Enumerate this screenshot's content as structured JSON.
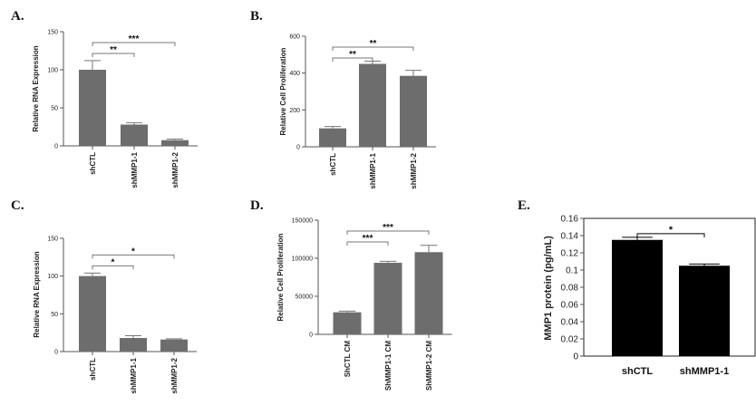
{
  "chart_data": [
    {
      "id": "A",
      "type": "bar",
      "panel_label": "A.",
      "ylabel": "Relative RNA Expression",
      "ylim": [
        0,
        150
      ],
      "yticks": [
        0,
        50,
        100,
        150
      ],
      "ytick_labels": [
        "0",
        "50",
        "100",
        "150"
      ],
      "categories": [
        "shCTL",
        "shMMP1-1",
        "shMMP1-2"
      ],
      "values": [
        100,
        28,
        7.5
      ],
      "errors": [
        12,
        2.5,
        1.5
      ],
      "bar_color": "#6d6d6d",
      "rotate_xlabels": true,
      "significance": [
        {
          "from": 0,
          "to": 1,
          "label": "**"
        },
        {
          "from": 0,
          "to": 2,
          "label": "***"
        }
      ]
    },
    {
      "id": "B",
      "type": "bar",
      "panel_label": "B.",
      "ylabel": "Relative Cell Proliferation",
      "ylim": [
        0,
        600
      ],
      "yticks": [
        0,
        200,
        400,
        600
      ],
      "ytick_labels": [
        "0",
        "200",
        "400",
        "600"
      ],
      "categories": [
        "shCTL",
        "shMMP1-1",
        "shMMP1-2"
      ],
      "values": [
        100,
        450,
        385
      ],
      "errors": [
        10,
        15,
        30
      ],
      "bar_color": "#6d6d6d",
      "rotate_xlabels": true,
      "significance": [
        {
          "from": 0,
          "to": 1,
          "label": "**"
        },
        {
          "from": 0,
          "to": 2,
          "label": "**"
        }
      ]
    },
    {
      "id": "C",
      "type": "bar",
      "panel_label": "C.",
      "ylabel": "Relative RNA Expression",
      "ylim": [
        0,
        150
      ],
      "yticks": [
        0,
        50,
        100,
        150
      ],
      "ytick_labels": [
        "0",
        "50",
        "100",
        "150"
      ],
      "categories": [
        "shCTL",
        "shMMP1-1",
        "shMMP1-2"
      ],
      "values": [
        100,
        18,
        16
      ],
      "errors": [
        4,
        3,
        1
      ],
      "bar_color": "#6d6d6d",
      "rotate_xlabels": true,
      "significance": [
        {
          "from": 0,
          "to": 1,
          "label": "*"
        },
        {
          "from": 0,
          "to": 2,
          "label": "*"
        }
      ]
    },
    {
      "id": "D",
      "type": "bar",
      "panel_label": "D.",
      "ylabel": "Relative Cell Proliferation",
      "ylim": [
        0,
        150000
      ],
      "yticks": [
        0,
        50000,
        100000,
        150000
      ],
      "ytick_labels": [
        "0",
        "50000",
        "100000",
        "150000"
      ],
      "categories": [
        "ShCTL CM",
        "ShMMP1-1 CM",
        "ShMMP1-2 CM"
      ],
      "values": [
        29000,
        94000,
        108000
      ],
      "errors": [
        1500,
        2000,
        9000
      ],
      "bar_color": "#6d6d6d",
      "rotate_xlabels": true,
      "significance": [
        {
          "from": 0,
          "to": 1,
          "label": "***"
        },
        {
          "from": 0,
          "to": 2,
          "label": "***"
        }
      ]
    },
    {
      "id": "E",
      "type": "bar",
      "panel_label": "E.",
      "ylabel": "MMP1 protein (pg/mL)",
      "ylim": [
        0,
        0.16
      ],
      "yticks": [
        0,
        0.02,
        0.04,
        0.06,
        0.08,
        0.1,
        0.12,
        0.14,
        0.16
      ],
      "ytick_labels": [
        "0",
        "0.02",
        "0.04",
        "0.06",
        "0.08",
        "0.1",
        "0.12",
        "0.14",
        "0.16"
      ],
      "categories": [
        "shCTL",
        "shMMP1-1"
      ],
      "values": [
        0.135,
        0.105
      ],
      "errors": [
        0.003,
        0.002
      ],
      "bar_color": "#000000",
      "rotate_xlabels": false,
      "boxed": true,
      "significance": [
        {
          "from": 0,
          "to": 1,
          "label": "*"
        }
      ]
    }
  ]
}
